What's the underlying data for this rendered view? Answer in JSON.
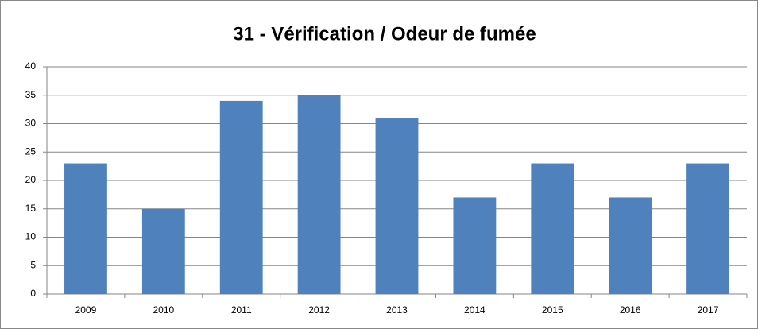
{
  "chart_data": {
    "type": "bar",
    "title": "31 - Vérification / Odeur de fumée",
    "categories": [
      "2009",
      "2010",
      "2011",
      "2012",
      "2013",
      "2014",
      "2015",
      "2016",
      "2017"
    ],
    "values": [
      23,
      15,
      34,
      35,
      31,
      17,
      23,
      17,
      23
    ],
    "color": "#4f81bd",
    "ylim": [
      0,
      40
    ],
    "yticks": [
      0,
      5,
      10,
      15,
      20,
      25,
      30,
      35,
      40
    ],
    "grid": true
  }
}
